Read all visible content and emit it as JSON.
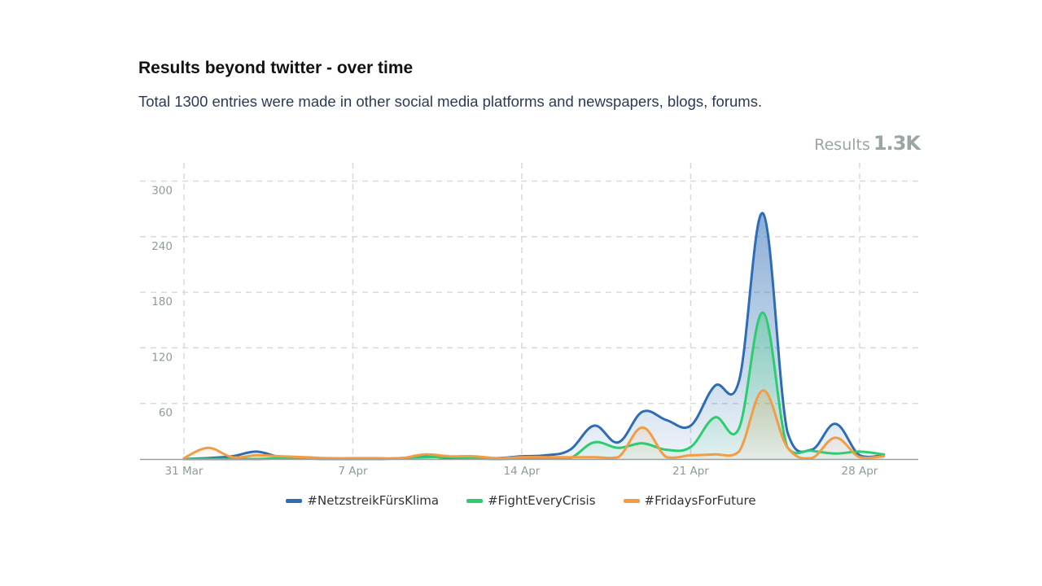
{
  "header": {
    "title": "Results beyond twitter - over time",
    "subtitle": "Total 1300 entries were made in other social media platforms and newspapers, blogs, forums."
  },
  "kpi": {
    "label": "Results",
    "value": "1.3K"
  },
  "chart_data": {
    "type": "area",
    "title": "Results beyond twitter - over time",
    "xlabel": "",
    "ylabel": "",
    "ylim": [
      0,
      320
    ],
    "yticks": [
      60,
      120,
      180,
      240,
      300
    ],
    "x": [
      "31 Mar",
      "1 Apr",
      "2 Apr",
      "3 Apr",
      "4 Apr",
      "5 Apr",
      "6 Apr",
      "7 Apr",
      "8 Apr",
      "9 Apr",
      "10 Apr",
      "11 Apr",
      "12 Apr",
      "13 Apr",
      "14 Apr",
      "15 Apr",
      "16 Apr",
      "17 Apr",
      "18 Apr",
      "19 Apr",
      "20 Apr",
      "21 Apr",
      "22 Apr",
      "23 Apr",
      "24 Apr",
      "25 Apr",
      "26 Apr",
      "27 Apr",
      "28 Apr",
      "29 Apr"
    ],
    "xticks": [
      "31 Mar",
      "7 Apr",
      "14 Apr",
      "21 Apr",
      "28 Apr"
    ],
    "grid": true,
    "legend_position": "bottom-center",
    "series": [
      {
        "name": "#NetzstreikFürsKlima",
        "color": "#2e6db4",
        "values": [
          0,
          1,
          3,
          8,
          2,
          1,
          0,
          0,
          0,
          1,
          3,
          1,
          1,
          1,
          3,
          4,
          10,
          36,
          18,
          51,
          42,
          36,
          79,
          84,
          265,
          30,
          10,
          38,
          4,
          4
        ]
      },
      {
        "name": "#FightEveryCrisis",
        "color": "#2ecc71",
        "values": [
          0,
          0,
          0,
          0,
          1,
          1,
          0,
          0,
          0,
          1,
          2,
          2,
          1,
          0,
          1,
          1,
          1,
          18,
          12,
          17,
          10,
          13,
          45,
          33,
          158,
          13,
          9,
          6,
          8,
          5
        ]
      },
      {
        "name": "#FridaysForFuture",
        "color": "#f39c45",
        "values": [
          1,
          12,
          2,
          4,
          3,
          2,
          1,
          1,
          1,
          1,
          5,
          3,
          3,
          1,
          2,
          2,
          2,
          2,
          2,
          34,
          2,
          4,
          5,
          8,
          74,
          13,
          1,
          23,
          2,
          3
        ]
      }
    ]
  }
}
